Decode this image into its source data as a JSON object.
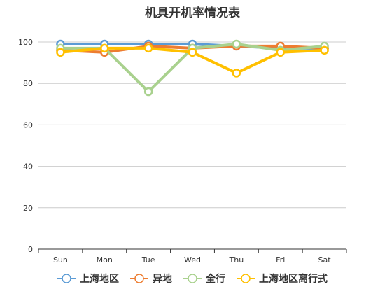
{
  "chart_data": {
    "type": "line",
    "title": "机具开机率情况表",
    "categories": [
      "Sun",
      "Mon",
      "Tue",
      "Wed",
      "Thu",
      "Fri",
      "Sat"
    ],
    "ylim": [
      0,
      100
    ],
    "yticks": [
      0,
      20,
      40,
      60,
      80,
      100
    ],
    "grid": true,
    "legend_position": "bottom",
    "series": [
      {
        "name": "上海地区",
        "color": "#5b9bd5",
        "values": [
          99,
          99,
          99,
          99,
          98,
          97,
          97
        ]
      },
      {
        "name": "异地",
        "color": "#ed7d31",
        "values": [
          96,
          95,
          98,
          97,
          98,
          98,
          97
        ]
      },
      {
        "name": "全行",
        "color": "#a9d18e",
        "values": [
          97,
          97,
          76,
          97,
          99,
          96,
          98
        ]
      },
      {
        "name": "上海地区离行式",
        "color": "#ffc000",
        "values": [
          95,
          97,
          97,
          95,
          85,
          95,
          96
        ]
      }
    ]
  }
}
